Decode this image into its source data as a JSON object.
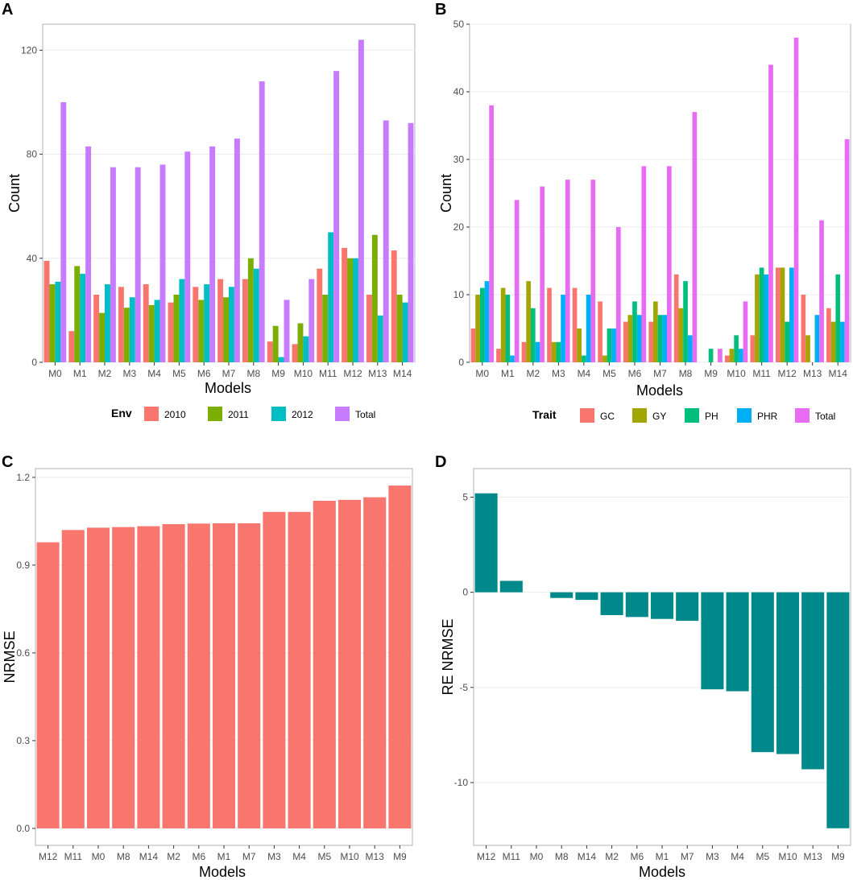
{
  "chart_data": [
    {
      "panel": "A",
      "type": "bar",
      "xlabel": "Models",
      "ylabel": "Count",
      "categories": [
        "M0",
        "M1",
        "M2",
        "M3",
        "M4",
        "M5",
        "M6",
        "M7",
        "M8",
        "M9",
        "M10",
        "M11",
        "M12",
        "M13",
        "M14"
      ],
      "ylim": [
        0,
        130
      ],
      "yticks": [
        0,
        40,
        80,
        120
      ],
      "legend_title": "Env",
      "legend_position": "bottom",
      "series": [
        {
          "name": "2010",
          "color": "#F8766D",
          "values": [
            39,
            12,
            26,
            29,
            30,
            23,
            29,
            32,
            32,
            8,
            7,
            36,
            44,
            26,
            43
          ]
        },
        {
          "name": "2011",
          "color": "#7CAE00",
          "values": [
            30,
            37,
            19,
            21,
            22,
            26,
            24,
            25,
            40,
            14,
            15,
            26,
            40,
            49,
            26
          ]
        },
        {
          "name": "2012",
          "color": "#00BFC4",
          "values": [
            31,
            34,
            30,
            25,
            24,
            32,
            30,
            29,
            36,
            2,
            10,
            50,
            40,
            18,
            23
          ]
        },
        {
          "name": "Total",
          "color": "#C77CFF",
          "values": [
            100,
            83,
            75,
            75,
            76,
            81,
            83,
            86,
            108,
            24,
            32,
            112,
            124,
            93,
            92
          ]
        }
      ]
    },
    {
      "panel": "B",
      "type": "bar",
      "xlabel": "Models",
      "ylabel": "Count",
      "categories": [
        "M0",
        "M1",
        "M2",
        "M3",
        "M4",
        "M5",
        "M6",
        "M7",
        "M8",
        "M9",
        "M10",
        "M11",
        "M12",
        "M13",
        "M14"
      ],
      "ylim": [
        0,
        50
      ],
      "yticks": [
        0,
        10,
        20,
        30,
        40,
        50
      ],
      "legend_title": "Trait",
      "legend_position": "bottom",
      "series": [
        {
          "name": "GC",
          "color": "#F8766D",
          "values": [
            5,
            2,
            3,
            11,
            11,
            9,
            6,
            6,
            13,
            0,
            1,
            4,
            14,
            10,
            8
          ]
        },
        {
          "name": "GY",
          "color": "#A3A500",
          "values": [
            10,
            11,
            12,
            3,
            5,
            1,
            7,
            9,
            8,
            0,
            2,
            13,
            14,
            4,
            6
          ]
        },
        {
          "name": "PH",
          "color": "#00BF7D",
          "values": [
            11,
            10,
            8,
            3,
            1,
            5,
            9,
            7,
            12,
            2,
            4,
            14,
            6,
            0,
            13
          ]
        },
        {
          "name": "PHR",
          "color": "#00B0F6",
          "values": [
            12,
            1,
            3,
            10,
            10,
            5,
            7,
            7,
            4,
            0,
            2,
            13,
            14,
            7,
            6
          ]
        },
        {
          "name": "Total",
          "color": "#E76BF3",
          "values": [
            38,
            24,
            26,
            27,
            27,
            20,
            29,
            29,
            37,
            2,
            9,
            44,
            48,
            21,
            33
          ]
        }
      ]
    },
    {
      "panel": "C",
      "type": "bar",
      "xlabel": "Models",
      "ylabel": "NRMSE",
      "categories": [
        "M12",
        "M11",
        "M0",
        "M8",
        "M14",
        "M2",
        "M6",
        "M1",
        "M7",
        "M3",
        "M4",
        "M5",
        "M10",
        "M13",
        "M9"
      ],
      "values": [
        0.978,
        1.02,
        1.028,
        1.03,
        1.033,
        1.04,
        1.042,
        1.043,
        1.043,
        1.082,
        1.082,
        1.12,
        1.123,
        1.132,
        1.172
      ],
      "color": "#F8766D",
      "ylim": [
        -0.058,
        1.23
      ],
      "yticks": [
        0.0,
        0.3,
        0.6,
        0.9,
        1.2
      ],
      "ytick_labels": [
        "0.0",
        "0.3",
        "0.6",
        "0.9",
        "1.2"
      ]
    },
    {
      "panel": "D",
      "type": "bar",
      "xlabel": "Models",
      "ylabel": "RE NRMSE",
      "categories": [
        "M12",
        "M11",
        "M0",
        "M8",
        "M14",
        "M2",
        "M6",
        "M1",
        "M7",
        "M3",
        "M4",
        "M5",
        "M10",
        "M13",
        "M9"
      ],
      "values": [
        5.2,
        0.6,
        0.0,
        -0.3,
        -0.4,
        -1.2,
        -1.3,
        -1.4,
        -1.5,
        -5.1,
        -5.2,
        -8.4,
        -8.5,
        -9.3,
        -12.4
      ],
      "color": "#00898A",
      "ylim": [
        -13.3,
        6.5
      ],
      "yticks": [
        -10,
        -5,
        0,
        5
      ],
      "ytick_labels": [
        "-10",
        "-5",
        "0",
        "5"
      ]
    }
  ]
}
